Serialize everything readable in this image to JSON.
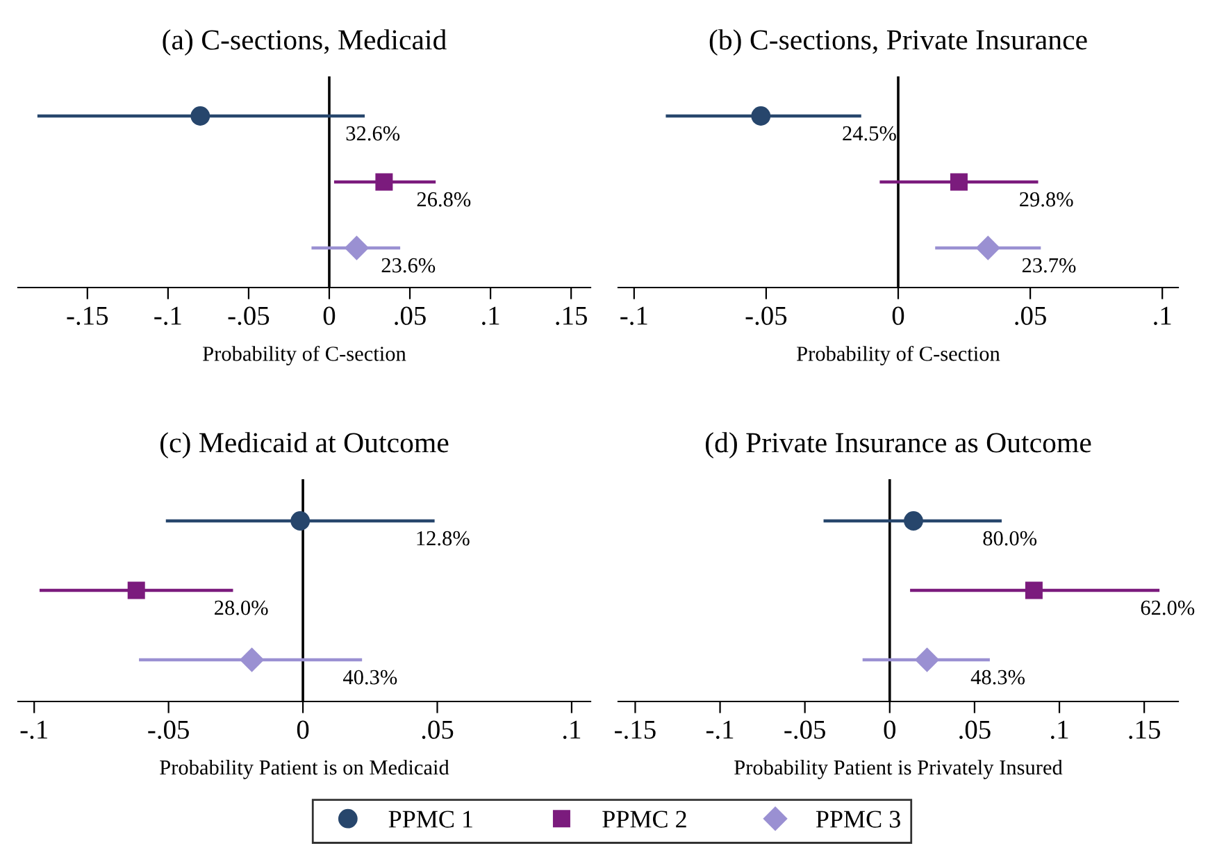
{
  "chart_data": [
    {
      "type": "scatter",
      "orientation": "horizontal",
      "title": "(a) C-sections, Medicaid",
      "xlabel": "Probability of C-section",
      "categories": [
        null,
        null,
        null
      ],
      "xlim": [
        -0.193,
        0.162
      ],
      "xticks": [
        {
          "value": -0.15,
          "label": "-.15"
        },
        {
          "value": -0.1,
          "label": "-.1"
        },
        {
          "value": -0.05,
          "label": "-.05"
        },
        0,
        {
          "value": 0.05,
          "label": ".05"
        },
        {
          "value": 0.1,
          "label": ".1"
        },
        {
          "value": 0.15,
          "label": ".15"
        }
      ],
      "ref_lines": [
        {
          "axis": "x",
          "value": 0,
          "color": "#000000"
        }
      ],
      "grid": false,
      "legend": "bottom",
      "annotations": [
        "32.6%",
        "26.8%",
        "23.6%"
      ],
      "series": [
        {
          "name": "PPMC 1",
          "color": "#27466c",
          "marker": "circle",
          "values": [
            -0.08,
            null,
            null
          ],
          "errors": [
            [
              -0.181,
              0.022
            ],
            null,
            null
          ]
        },
        {
          "name": "PPMC 2",
          "color": "#7b1b7d",
          "marker": "square",
          "values": [
            null,
            0.034,
            null
          ],
          "errors": [
            null,
            [
              0.003,
              0.066
            ],
            null
          ]
        },
        {
          "name": "PPMC 3",
          "color": "#9a90d2",
          "marker": "diamond",
          "values": [
            null,
            null,
            0.017
          ],
          "errors": [
            null,
            null,
            [
              -0.011,
              0.044
            ]
          ]
        }
      ]
    },
    {
      "type": "scatter",
      "orientation": "horizontal",
      "title": "(b) C-sections, Private Insurance",
      "xlabel": "Probability of C-section",
      "categories": [
        null,
        null,
        null
      ],
      "xlim": [
        -0.106,
        0.106
      ],
      "xticks": [
        {
          "value": -0.1,
          "label": "-.1"
        },
        {
          "value": -0.05,
          "label": "-.05"
        },
        0,
        {
          "value": 0.05,
          "label": ".05"
        },
        {
          "value": 0.1,
          "label": ".1"
        }
      ],
      "ref_lines": [
        {
          "axis": "x",
          "value": 0,
          "color": "#000000"
        }
      ],
      "grid": false,
      "legend": "bottom",
      "annotations": [
        "24.5%",
        "29.8%",
        "23.7%"
      ],
      "series": [
        {
          "name": "PPMC 1",
          "color": "#27466c",
          "marker": "circle",
          "values": [
            -0.052,
            null,
            null
          ],
          "errors": [
            [
              -0.088,
              -0.014
            ],
            null,
            null
          ]
        },
        {
          "name": "PPMC 2",
          "color": "#7b1b7d",
          "marker": "square",
          "values": [
            null,
            0.023,
            null
          ],
          "errors": [
            null,
            [
              -0.007,
              0.053
            ],
            null
          ]
        },
        {
          "name": "PPMC 3",
          "color": "#9a90d2",
          "marker": "diamond",
          "values": [
            null,
            null,
            0.034
          ],
          "errors": [
            null,
            null,
            [
              0.014,
              0.054
            ]
          ]
        }
      ]
    },
    {
      "type": "scatter",
      "orientation": "horizontal",
      "title": "(c) Medicaid at Outcome",
      "xlabel": "Probability Patient is on Medicaid",
      "categories": [
        null,
        null,
        null
      ],
      "xlim": [
        -0.106,
        0.107
      ],
      "xticks": [
        {
          "value": -0.1,
          "label": "-.1"
        },
        {
          "value": -0.05,
          "label": "-.05"
        },
        0,
        {
          "value": 0.05,
          "label": ".05"
        },
        {
          "value": 0.1,
          "label": ".1"
        }
      ],
      "ref_lines": [
        {
          "axis": "x",
          "value": 0,
          "color": "#000000"
        }
      ],
      "grid": false,
      "legend": "bottom",
      "annotations": [
        "12.8%",
        "28.0%",
        "40.3%"
      ],
      "series": [
        {
          "name": "PPMC 1",
          "color": "#27466c",
          "marker": "circle",
          "values": [
            -0.001,
            null,
            null
          ],
          "errors": [
            [
              -0.051,
              0.049
            ],
            null,
            null
          ]
        },
        {
          "name": "PPMC 2",
          "color": "#7b1b7d",
          "marker": "square",
          "values": [
            null,
            -0.062,
            null
          ],
          "errors": [
            null,
            [
              -0.098,
              -0.026
            ],
            null
          ]
        },
        {
          "name": "PPMC 3",
          "color": "#9a90d2",
          "marker": "diamond",
          "values": [
            null,
            null,
            -0.019
          ],
          "errors": [
            null,
            null,
            [
              -0.061,
              0.022
            ]
          ]
        }
      ]
    },
    {
      "type": "scatter",
      "orientation": "horizontal",
      "title": "(d) Private Insurance as Outcome",
      "xlabel": "Probability Patient is Privately Insured",
      "categories": [
        null,
        null,
        null
      ],
      "xlim": [
        -0.16,
        0.17
      ],
      "xticks": [
        {
          "value": -0.15,
          "label": "-.15"
        },
        {
          "value": -0.1,
          "label": "-.1"
        },
        {
          "value": -0.05,
          "label": "-.05"
        },
        0,
        {
          "value": 0.05,
          "label": ".05"
        },
        {
          "value": 0.1,
          "label": ".1"
        },
        {
          "value": 0.15,
          "label": ".15"
        }
      ],
      "ref_lines": [
        {
          "axis": "x",
          "value": 0,
          "color": "#000000"
        }
      ],
      "grid": false,
      "legend": "bottom",
      "annotations": [
        "80.0%",
        "62.0%",
        "48.3%"
      ],
      "series": [
        {
          "name": "PPMC 1",
          "color": "#27466c",
          "marker": "circle",
          "values": [
            0.014,
            null,
            null
          ],
          "errors": [
            [
              -0.039,
              0.066
            ],
            null,
            null
          ]
        },
        {
          "name": "PPMC 2",
          "color": "#7b1b7d",
          "marker": "square",
          "values": [
            null,
            0.085,
            null
          ],
          "errors": [
            null,
            [
              0.012,
              0.159
            ],
            null
          ]
        },
        {
          "name": "PPMC 3",
          "color": "#9a90d2",
          "marker": "diamond",
          "values": [
            null,
            null,
            0.022
          ],
          "errors": [
            null,
            null,
            [
              -0.016,
              0.059
            ]
          ]
        }
      ]
    }
  ]
}
